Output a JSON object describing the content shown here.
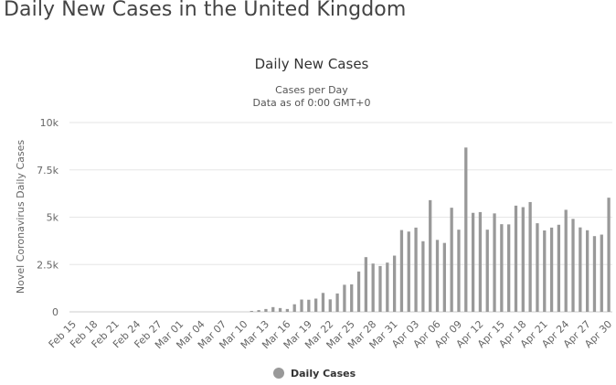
{
  "page": {
    "heading": "Daily New Cases in the United Kingdom"
  },
  "chart_data": {
    "type": "bar",
    "title": "Daily New Cases",
    "subtitle_lines": [
      "Cases per Day",
      "Data as of 0:00 GMT+0"
    ],
    "ylabel": "Novel Coronavirus Daily Cases",
    "xlabel": "",
    "ylim": [
      0,
      10000
    ],
    "y_ticks": [
      {
        "value": 0,
        "label": "0"
      },
      {
        "value": 2500,
        "label": "2.5k"
      },
      {
        "value": 5000,
        "label": "5k"
      },
      {
        "value": 7500,
        "label": "7.5k"
      },
      {
        "value": 10000,
        "label": "10k"
      }
    ],
    "grid": true,
    "legend_position": "bottom",
    "colors": {
      "bars": "#999999",
      "grid": "#e6e6e6",
      "axis": "#cccccc",
      "text": "#333333",
      "tick_text": "#666666"
    },
    "categories": [
      "Feb 15",
      "Feb 16",
      "Feb 17",
      "Feb 18",
      "Feb 19",
      "Feb 20",
      "Feb 21",
      "Feb 22",
      "Feb 23",
      "Feb 24",
      "Feb 25",
      "Feb 26",
      "Feb 27",
      "Feb 28",
      "Feb 29",
      "Mar 01",
      "Mar 02",
      "Mar 03",
      "Mar 04",
      "Mar 05",
      "Mar 06",
      "Mar 07",
      "Mar 08",
      "Mar 09",
      "Mar 10",
      "Mar 11",
      "Mar 12",
      "Mar 13",
      "Mar 14",
      "Mar 15",
      "Mar 16",
      "Mar 17",
      "Mar 18",
      "Mar 19",
      "Mar 20",
      "Mar 21",
      "Mar 22",
      "Mar 23",
      "Mar 24",
      "Mar 25",
      "Mar 26",
      "Mar 27",
      "Mar 28",
      "Mar 29",
      "Mar 30",
      "Mar 31",
      "Apr 01",
      "Apr 02",
      "Apr 03",
      "Apr 04",
      "Apr 05",
      "Apr 06",
      "Apr 07",
      "Apr 08",
      "Apr 09",
      "Apr 10",
      "Apr 11",
      "Apr 12",
      "Apr 13",
      "Apr 14",
      "Apr 15",
      "Apr 16",
      "Apr 17",
      "Apr 18",
      "Apr 19",
      "Apr 20",
      "Apr 21",
      "Apr 22",
      "Apr 23",
      "Apr 24",
      "Apr 25",
      "Apr 26",
      "Apr 27",
      "Apr 28",
      "Apr 29",
      "Apr 30"
    ],
    "x_tick_labels": [
      "Feb 15",
      "Feb 18",
      "Feb 21",
      "Feb 24",
      "Feb 27",
      "Mar 01",
      "Mar 04",
      "Mar 07",
      "Mar 10",
      "Mar 13",
      "Mar 16",
      "Mar 19",
      "Mar 22",
      "Mar 25",
      "Mar 28",
      "Mar 31",
      "Apr 03",
      "Apr 06",
      "Apr 09",
      "Apr 12",
      "Apr 15",
      "Apr 18",
      "Apr 21",
      "Apr 24",
      "Apr 27",
      "Apr 30"
    ],
    "series": [
      {
        "name": "Daily Cases",
        "values": [
          0,
          0,
          0,
          0,
          0,
          0,
          0,
          0,
          0,
          0,
          0,
          0,
          0,
          0,
          0,
          0,
          0,
          0,
          0,
          0,
          0,
          0,
          0,
          0,
          0,
          50,
          90,
          150,
          250,
          200,
          150,
          400,
          650,
          640,
          700,
          1000,
          660,
          970,
          1430,
          1450,
          2130,
          2890,
          2550,
          2420,
          2600,
          2970,
          4320,
          4240,
          4450,
          3730,
          5900,
          3800,
          3640,
          5500,
          4340,
          8680,
          5230,
          5270,
          4340,
          5200,
          4630,
          4620,
          5610,
          5530,
          5800,
          4680,
          4300,
          4450,
          4600,
          5390,
          4910,
          4460,
          4310,
          4000,
          4080,
          6030
        ]
      }
    ]
  }
}
